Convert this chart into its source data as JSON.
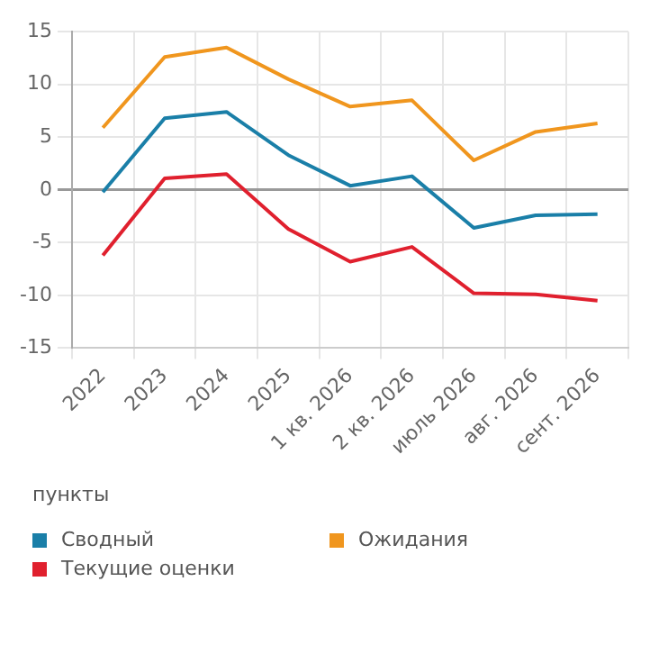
{
  "chart_data": {
    "type": "line",
    "categories": [
      "2022",
      "2023",
      "2024",
      "2025",
      "1 кв. 2026",
      "2 кв. 2026",
      "июль 2026",
      "авг. 2026",
      "сент. 2026"
    ],
    "series": [
      {
        "name": "Сводный",
        "color": "#1a7fa8",
        "values": [
          -0.2,
          6.8,
          7.4,
          3.3,
          0.4,
          1.3,
          -3.6,
          -2.4,
          -2.3
        ]
      },
      {
        "name": "Ожидания",
        "color": "#f0961e",
        "values": [
          5.9,
          12.6,
          13.5,
          10.5,
          7.9,
          8.5,
          2.8,
          5.5,
          6.3
        ]
      },
      {
        "name": "Текущие оценки",
        "color": "#e0202e",
        "values": [
          -6.2,
          1.1,
          1.5,
          -3.7,
          -6.8,
          -5.4,
          -9.8,
          -9.9,
          -10.5
        ]
      }
    ],
    "ylim": [
      -15,
      15
    ],
    "yticks": [
      -15,
      -10,
      -5,
      0,
      5,
      10,
      15
    ],
    "grid": true,
    "legend": "bottom",
    "marker": "none",
    "line_style": "solid",
    "annotations": [
      "пункты"
    ]
  }
}
